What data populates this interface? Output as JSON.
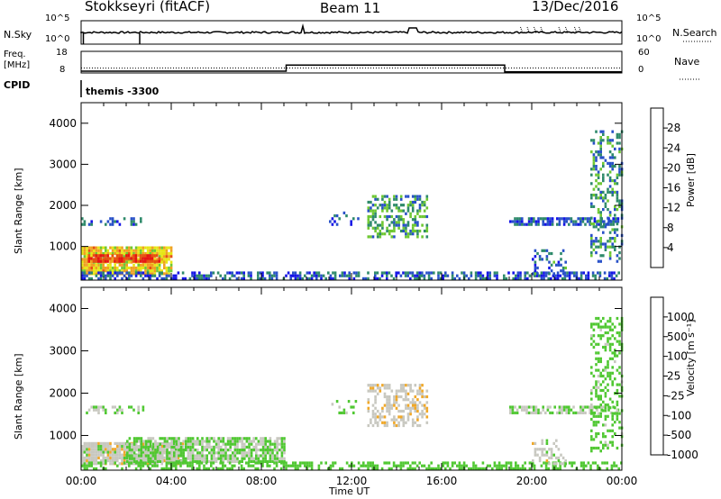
{
  "header": {
    "station": "Stokkseyri (fitACF)",
    "beam": "Beam 11",
    "date": "13/Dec/2016"
  },
  "nsky_panel": {
    "left_label": "N.Sky",
    "right_label": "N.Search",
    "ticks_left": [
      "10^5",
      "10^0"
    ],
    "ticks_right": [
      "10^5",
      "10^0"
    ]
  },
  "freq_panel": {
    "left_label_line1": "Freq.",
    "left_label_line2": "[MHz]",
    "right_label": "Nave",
    "ticks_left": [
      "18",
      "8"
    ],
    "ticks_right": [
      "60",
      "0"
    ],
    "cpid_label": "CPID",
    "cpid_value": "themis -3300",
    "freq_steps": [
      {
        "t": 0,
        "v": 10.3
      },
      {
        "t": 2.5,
        "v": 10.2
      },
      {
        "t": 2.6,
        "v": 10.3
      },
      {
        "t": 24,
        "v": 10.3
      }
    ],
    "nave_steps": [
      {
        "t": 0,
        "v": 5
      },
      {
        "t": 9.1,
        "v": 5
      },
      {
        "t": 9.1,
        "v": 22
      },
      {
        "t": 18.8,
        "v": 22
      },
      {
        "t": 18.8,
        "v": 3
      },
      {
        "t": 24,
        "v": 3
      }
    ]
  },
  "chart_data": [
    {
      "type": "heatmap",
      "name": "Power",
      "ylabel": "Slant Range [km]",
      "xlabel": "",
      "xlim": [
        0,
        24
      ],
      "ylim": [
        180,
        4500
      ],
      "yticks": [
        "1000",
        "2000",
        "3000",
        "4000"
      ],
      "xticks": [],
      "colorbar": {
        "label": "Power [dB]",
        "ticks": [
          "28",
          "24",
          "20",
          "16",
          "12",
          "8",
          "4"
        ],
        "range": [
          0,
          30
        ],
        "colors": [
          "#1414e6",
          "#2850c8",
          "#2e8a6a",
          "#6ec832",
          "#e6e614",
          "#f0a020",
          "#e65014",
          "#e61414"
        ]
      },
      "regions": [
        {
          "t0": 0.0,
          "t1": 4.0,
          "r0": 300,
          "r1": 950,
          "v": 18,
          "d": 0.9
        },
        {
          "t0": 0.3,
          "t1": 3.5,
          "r0": 600,
          "r1": 800,
          "v": 27,
          "d": 0.85
        },
        {
          "t0": 0.0,
          "t1": 24.0,
          "r0": 180,
          "r1": 380,
          "v": 6,
          "d": 0.55
        },
        {
          "t0": 12.7,
          "t1": 15.3,
          "r0": 1200,
          "r1": 2200,
          "v": 10,
          "d": 0.5
        },
        {
          "t0": 19.0,
          "t1": 23.8,
          "r0": 1500,
          "r1": 1700,
          "v": 6,
          "d": 0.7
        },
        {
          "t0": 22.6,
          "t1": 24.0,
          "r0": 600,
          "r1": 3800,
          "v": 9,
          "d": 0.35
        },
        {
          "t0": 0.0,
          "t1": 2.8,
          "r0": 1500,
          "r1": 1650,
          "v": 6,
          "d": 0.4
        },
        {
          "t0": 11.0,
          "t1": 12.3,
          "r0": 1500,
          "r1": 1800,
          "v": 5,
          "d": 0.25
        },
        {
          "t0": 20.0,
          "t1": 21.5,
          "r0": 300,
          "r1": 900,
          "v": 7,
          "d": 0.35
        }
      ]
    },
    {
      "type": "heatmap",
      "name": "Velocity",
      "ylabel": "Slant Range [km]",
      "xlabel": "Time UT",
      "xlim": [
        0,
        24
      ],
      "ylim": [
        180,
        4500
      ],
      "yticks": [
        "1000",
        "2000",
        "3000",
        "4000"
      ],
      "xticks": [
        "00:00",
        "04:00",
        "08:00",
        "12:00",
        "16:00",
        "20:00",
        "00:00"
      ],
      "colorbar": {
        "label": "Velocity [m s⁻¹]",
        "ticks": [
          "1000",
          "500",
          "100",
          "25",
          "-25",
          "-100",
          "-500",
          "-1000"
        ],
        "range": [
          -1200,
          1200
        ],
        "colors": [
          "#e61414",
          "#f06e14",
          "#f0a828",
          "#c8c8c0",
          "#50c832",
          "#2e8a6a",
          "#2850c8",
          "#1414e6"
        ]
      },
      "regions": [
        {
          "t0": 0.0,
          "t1": 4.5,
          "r0": 300,
          "r1": 800,
          "v": -150,
          "d": 0.9
        },
        {
          "t0": 2.0,
          "t1": 9.0,
          "r0": 350,
          "r1": 950,
          "v": 0,
          "d": 0.8
        },
        {
          "t0": 0.0,
          "t1": 24.0,
          "r0": 180,
          "r1": 380,
          "v": 60,
          "d": 0.5
        },
        {
          "t0": 12.7,
          "t1": 15.3,
          "r0": 1200,
          "r1": 2200,
          "v": -200,
          "d": 0.5
        },
        {
          "t0": 19.0,
          "t1": 23.8,
          "r0": 1500,
          "r1": 1700,
          "v": 0,
          "d": 0.7
        },
        {
          "t0": 22.6,
          "t1": 24.0,
          "r0": 600,
          "r1": 3800,
          "v": 50,
          "d": 0.35
        },
        {
          "t0": 0.0,
          "t1": 2.8,
          "r0": 1500,
          "r1": 1650,
          "v": 0,
          "d": 0.4
        },
        {
          "t0": 11.0,
          "t1": 12.3,
          "r0": 1500,
          "r1": 1800,
          "v": 0,
          "d": 0.25
        },
        {
          "t0": 20.0,
          "t1": 21.5,
          "r0": 300,
          "r1": 900,
          "v": -150,
          "d": 0.35
        }
      ]
    }
  ],
  "colors": {
    "axis": "#000000",
    "background": "#ffffff"
  }
}
